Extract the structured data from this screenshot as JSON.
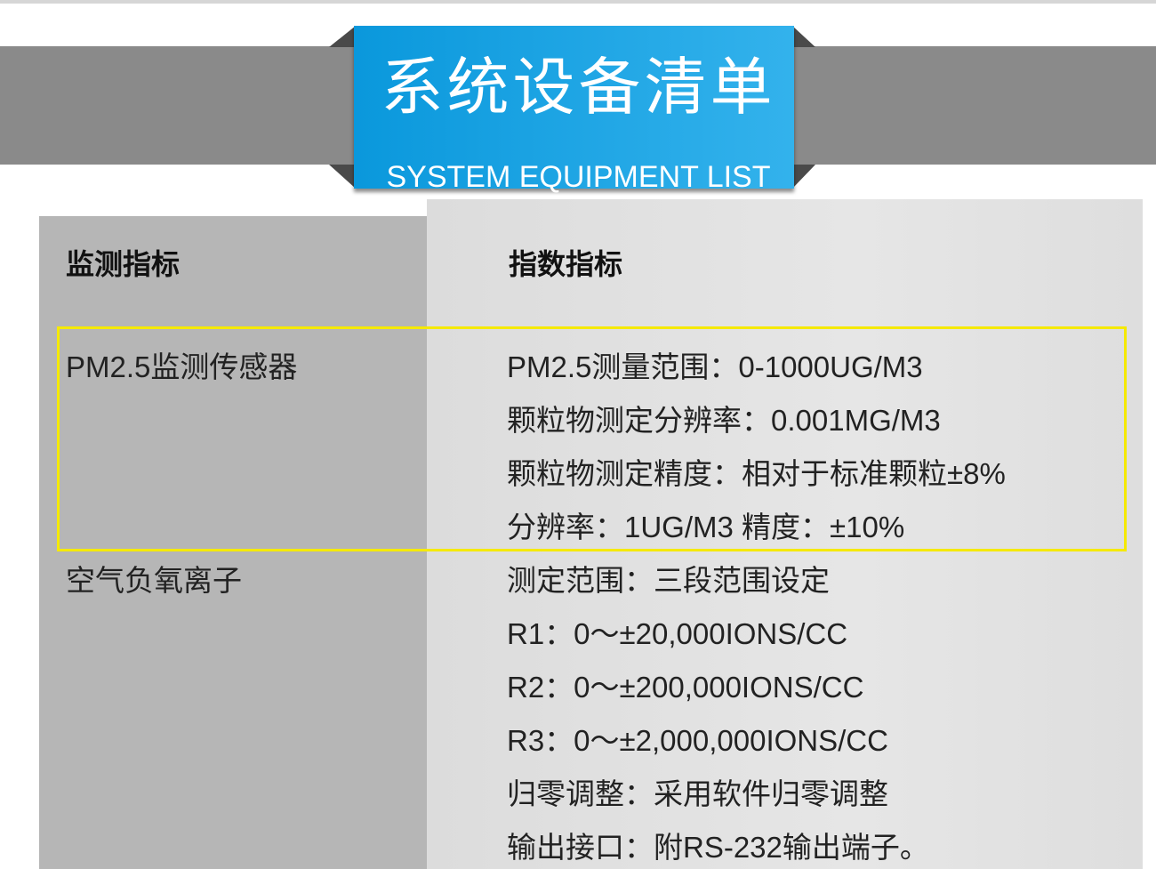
{
  "banner": {
    "title_zh": "系统设备清单",
    "title_en": "SYSTEM EQUIPMENT LIST"
  },
  "table": {
    "headers": [
      "监测指标",
      "指数指标"
    ],
    "rows": [
      {
        "name": "PM2.5监测传感器",
        "specs": [
          "PM2.5测量范围：0-1000UG/M3",
          "颗粒物测定分辨率：0.001MG/M3",
          "颗粒物测定精度：相对于标准颗粒±8%",
          "分辨率：1UG/M3  精度：±10%"
        ]
      },
      {
        "name": "空气负氧离子",
        "specs": [
          "测定范围：三段范围设定",
          " R1：0～±20,000IONS/CC",
          " R2：0～±200,000IONS/CC",
          " R3：0～±2,000,000IONS/CC",
          " 归零调整：采用软件归零调整",
          " 输出接口：附RS-232输出端子。"
        ]
      }
    ]
  },
  "colors": {
    "banner": "#1aa6e6",
    "highlight": "#f5e900"
  }
}
